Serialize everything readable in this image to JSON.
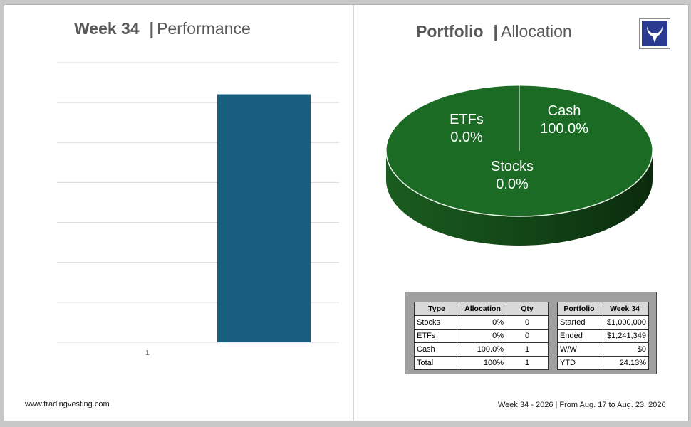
{
  "performance": {
    "title_strong": "Week 34",
    "title_sep": "|",
    "title_light": "Performance"
  },
  "allocation": {
    "title_strong": "Portfolio",
    "title_sep": "|",
    "title_light": "Allocation"
  },
  "chart_data": [
    {
      "type": "bar",
      "categories": [
        "1"
      ],
      "values": [
        1241349
      ],
      "ylim": [
        0,
        1400000
      ],
      "grid": true,
      "color": "#175e7f"
    },
    {
      "type": "pie",
      "labels": [
        "Cash",
        "ETFs",
        "Stocks"
      ],
      "values": [
        100.0,
        0.0,
        0.0
      ],
      "value_labels": [
        "100.0%",
        "0.0%",
        "0.0%"
      ],
      "color": "#1b6b24",
      "style": "3d"
    }
  ],
  "alloc_table": {
    "headers": [
      "Type",
      "Allocation",
      "Qty"
    ],
    "rows": [
      [
        "Stocks",
        "0%",
        "0"
      ],
      [
        "ETFs",
        "0%",
        "0"
      ],
      [
        "Cash",
        "100.0%",
        "1"
      ],
      [
        "Total",
        "100%",
        "1"
      ]
    ]
  },
  "portfolio_table": {
    "headers": [
      "Portfolio",
      "Week 34"
    ],
    "rows": [
      [
        "Started",
        "$1,000,000"
      ],
      [
        "Ended",
        "$1,241,349"
      ],
      [
        "W/W",
        "$0"
      ],
      [
        "YTD",
        "24.13%"
      ]
    ]
  },
  "footer": {
    "left": "www.tradingvesting.com",
    "right": "Week 34 - 2026 | From Aug. 17  to Aug. 23, 2026"
  },
  "logo_icon": "bull-horns-logo"
}
